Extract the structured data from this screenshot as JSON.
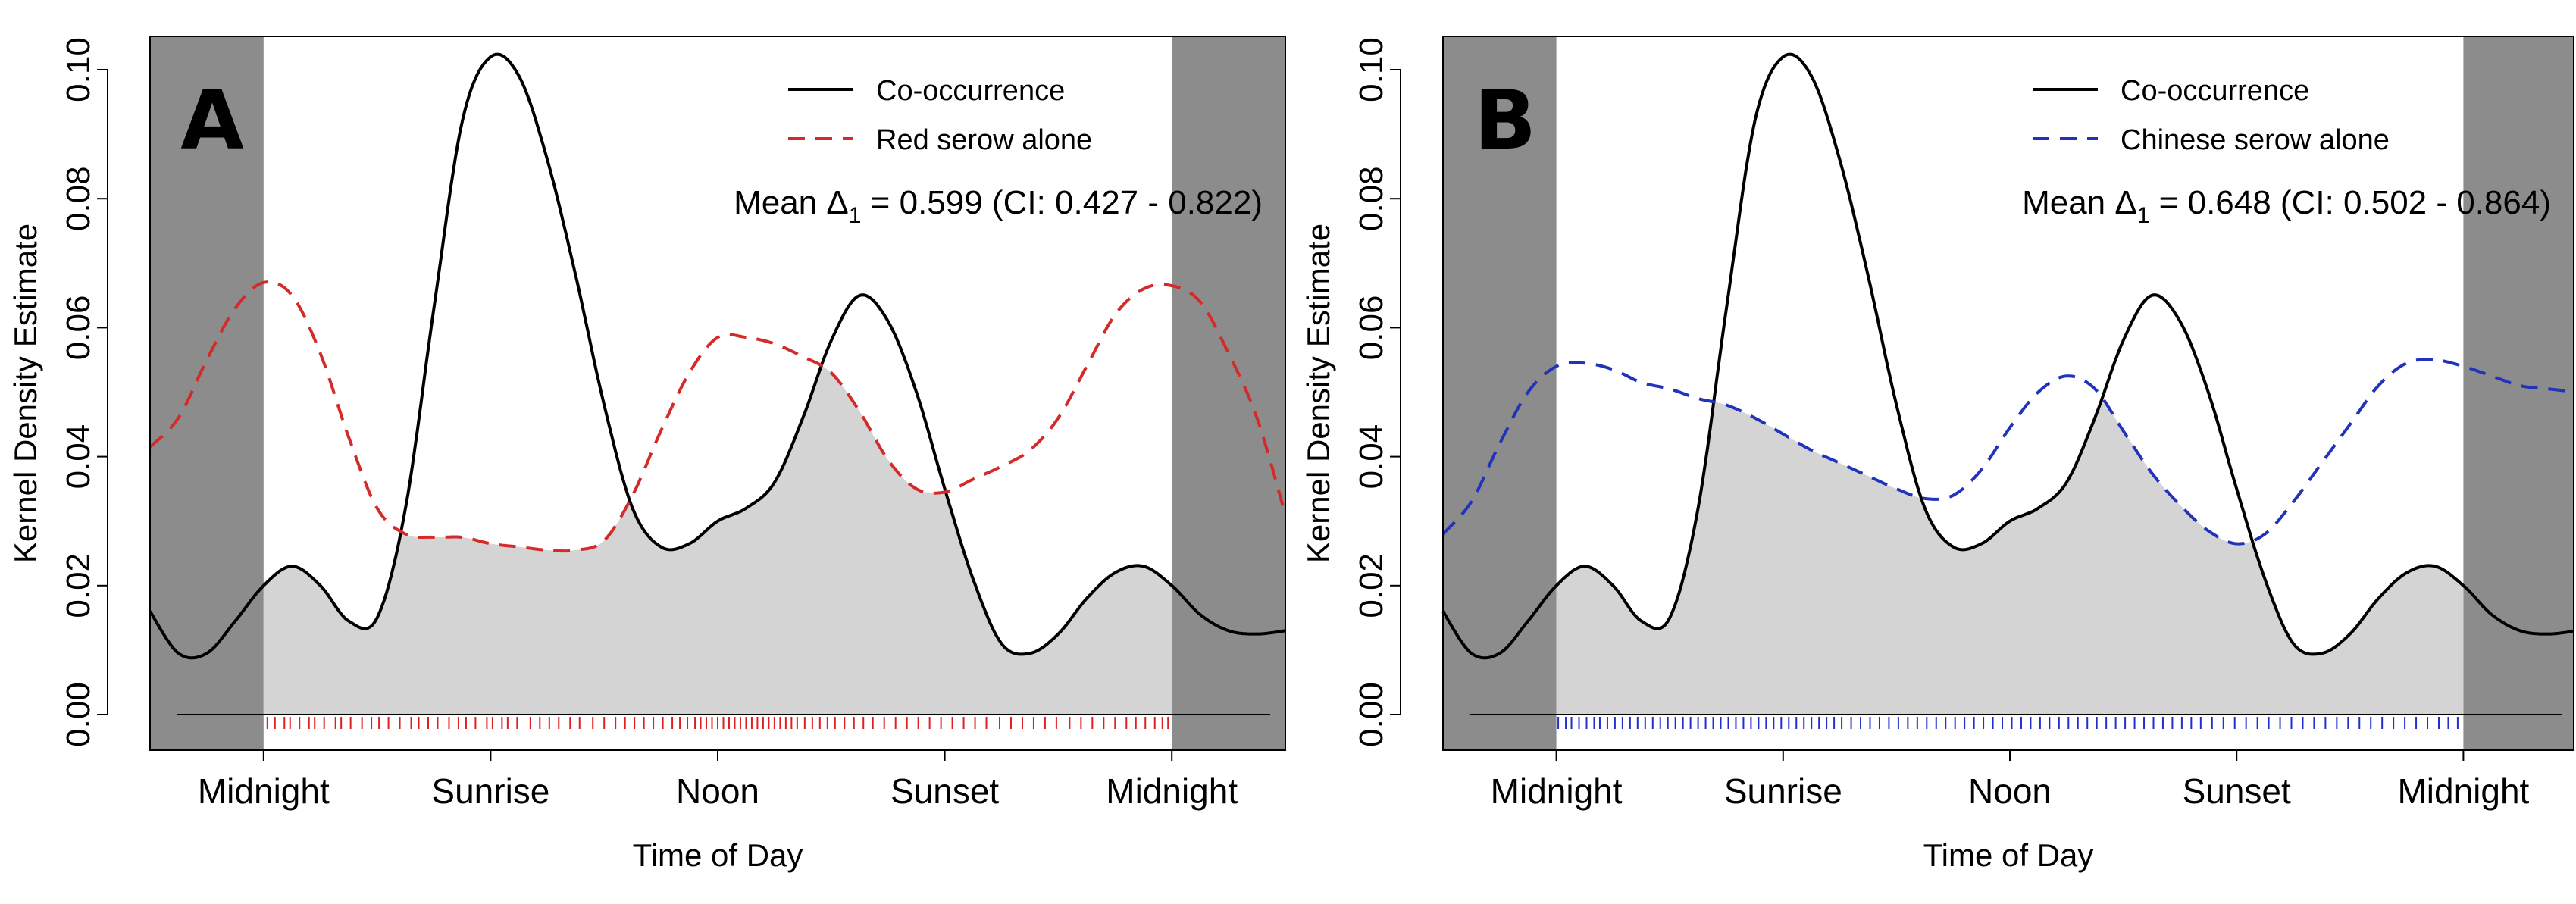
{
  "chart_data": [
    {
      "type": "line",
      "panel_label": "A",
      "xlabel": "Time of Day",
      "ylabel": "Kernel Density Estimate",
      "ylim": [
        0.0,
        0.1
      ],
      "y_ticks": [
        "0.00",
        "0.02",
        "0.04",
        "0.06",
        "0.08",
        "0.10"
      ],
      "x_tick_labels": [
        "Midnight",
        "Sunrise",
        "Noon",
        "Sunset",
        "Midnight"
      ],
      "x_tick_hours": [
        0,
        6,
        12,
        18,
        24
      ],
      "xlim_hours": [
        -3,
        27
      ],
      "night_shading_hours": [
        [
          -3,
          0
        ],
        [
          24,
          27
        ]
      ],
      "series": [
        {
          "name": "Co-occurrence",
          "style": "solid",
          "color": "#000000",
          "x": [
            -3,
            -2.25,
            -1.5,
            -0.75,
            0,
            0.75,
            1.5,
            2.25,
            3,
            3.75,
            4.5,
            5.25,
            6,
            6.75,
            7.5,
            8.25,
            9,
            9.75,
            10.5,
            11.25,
            12,
            12.75,
            13.5,
            14.25,
            15,
            15.75,
            16.5,
            17.25,
            18,
            18.75,
            19.5,
            20.25,
            21,
            21.75,
            22.5,
            23.25,
            24,
            24.75,
            25.5,
            26.25,
            27
          ],
          "y": [
            0.016,
            0.0095,
            0.0095,
            0.0145,
            0.02,
            0.023,
            0.02,
            0.0145,
            0.015,
            0.032,
            0.063,
            0.092,
            0.102,
            0.099,
            0.086,
            0.068,
            0.048,
            0.032,
            0.026,
            0.0265,
            0.03,
            0.032,
            0.036,
            0.046,
            0.058,
            0.065,
            0.061,
            0.05,
            0.035,
            0.021,
            0.011,
            0.0095,
            0.0125,
            0.018,
            0.022,
            0.023,
            0.02,
            0.0155,
            0.013,
            0.0125,
            0.013
          ]
        },
        {
          "name": "Red serow alone",
          "style": "dashed",
          "color": "#d42a2a",
          "x": [
            -3,
            -2.25,
            -1.5,
            -0.75,
            0,
            0.75,
            1.5,
            2.25,
            3,
            3.75,
            4.5,
            5.25,
            6,
            6.75,
            7.5,
            8.25,
            9,
            9.75,
            10.5,
            11.25,
            12,
            12.75,
            13.5,
            14.25,
            15,
            15.75,
            16.5,
            17.25,
            18,
            18.75,
            19.5,
            20.25,
            21,
            21.75,
            22.5,
            23.25,
            24,
            24.75,
            25.5,
            26.25,
            27
          ],
          "y": [
            0.0415,
            0.046,
            0.055,
            0.063,
            0.067,
            0.065,
            0.056,
            0.043,
            0.032,
            0.028,
            0.0275,
            0.0275,
            0.0265,
            0.026,
            0.0255,
            0.0255,
            0.027,
            0.034,
            0.044,
            0.053,
            0.0585,
            0.0585,
            0.0575,
            0.0555,
            0.053,
            0.047,
            0.0395,
            0.035,
            0.0345,
            0.0365,
            0.0385,
            0.041,
            0.046,
            0.054,
            0.062,
            0.066,
            0.0665,
            0.064,
            0.056,
            0.046,
            0.031
          ]
        }
      ],
      "legend": [
        "Co-occurrence",
        "Red serow alone"
      ],
      "legend_position": "top-right",
      "annotation": {
        "prefix": "Mean Δ",
        "subscript": "1",
        "suffix": " = 0.599 (CI: 0.427 - 0.822)"
      },
      "rug_color": "#e02020",
      "rug_hours": [
        0.1,
        0.3,
        0.55,
        0.7,
        0.95,
        1.2,
        1.35,
        1.6,
        1.9,
        2.05,
        2.3,
        2.6,
        2.85,
        3.05,
        3.3,
        3.6,
        3.9,
        4.1,
        4.35,
        4.6,
        4.9,
        5.15,
        5.35,
        5.6,
        5.9,
        6.05,
        6.3,
        6.45,
        6.7,
        7.05,
        7.3,
        7.55,
        7.8,
        8.1,
        8.35,
        8.7,
        9.0,
        9.3,
        9.55,
        9.8,
        10.05,
        10.3,
        10.55,
        10.8,
        11.0,
        11.2,
        11.4,
        11.55,
        11.7,
        11.85,
        12.0,
        12.15,
        12.3,
        12.45,
        12.6,
        12.75,
        12.9,
        13.05,
        13.2,
        13.35,
        13.5,
        13.65,
        13.8,
        13.95,
        14.1,
        14.3,
        14.5,
        14.7,
        14.9,
        15.1,
        15.35,
        15.6,
        15.85,
        16.1,
        16.4,
        16.7,
        17.0,
        17.3,
        17.6,
        17.9,
        18.2,
        18.5,
        18.8,
        19.1,
        19.45,
        19.75,
        20.05,
        20.35,
        20.65,
        20.95,
        21.3,
        21.6,
        21.9,
        22.2,
        22.5,
        22.8,
        23.05,
        23.3,
        23.55,
        23.75,
        23.9
      ]
    },
    {
      "type": "line",
      "panel_label": "B",
      "xlabel": "Time of Day",
      "ylabel": "Kernel Density Estimate",
      "ylim": [
        0.0,
        0.1
      ],
      "y_ticks": [
        "0.00",
        "0.02",
        "0.04",
        "0.06",
        "0.08",
        "0.10"
      ],
      "x_tick_labels": [
        "Midnight",
        "Sunrise",
        "Noon",
        "Sunset",
        "Midnight"
      ],
      "x_tick_hours": [
        0,
        6,
        12,
        18,
        24
      ],
      "xlim_hours": [
        -3,
        27
      ],
      "night_shading_hours": [
        [
          -3,
          0
        ],
        [
          24,
          27
        ]
      ],
      "series": [
        {
          "name": "Co-occurrence",
          "style": "solid",
          "color": "#000000",
          "x": [
            -3,
            -2.25,
            -1.5,
            -0.75,
            0,
            0.75,
            1.5,
            2.25,
            3,
            3.75,
            4.5,
            5.25,
            6,
            6.75,
            7.5,
            8.25,
            9,
            9.75,
            10.5,
            11.25,
            12,
            12.75,
            13.5,
            14.25,
            15,
            15.75,
            16.5,
            17.25,
            18,
            18.75,
            19.5,
            20.25,
            21,
            21.75,
            22.5,
            23.25,
            24,
            24.75,
            25.5,
            26.25,
            27
          ],
          "y": [
            0.016,
            0.0095,
            0.0095,
            0.0145,
            0.02,
            0.023,
            0.02,
            0.0145,
            0.015,
            0.032,
            0.063,
            0.092,
            0.102,
            0.099,
            0.086,
            0.068,
            0.048,
            0.032,
            0.026,
            0.0265,
            0.03,
            0.032,
            0.036,
            0.046,
            0.058,
            0.065,
            0.061,
            0.05,
            0.035,
            0.021,
            0.011,
            0.0095,
            0.0125,
            0.018,
            0.022,
            0.023,
            0.02,
            0.0155,
            0.013,
            0.0125,
            0.013
          ]
        },
        {
          "name": "Chinese serow alone",
          "style": "dashed",
          "color": "#2233bb",
          "x": [
            -3,
            -2.25,
            -1.5,
            -0.75,
            0,
            0.75,
            1.5,
            2.25,
            3,
            3.75,
            4.5,
            5.25,
            6,
            6.75,
            7.5,
            8.25,
            9,
            9.75,
            10.5,
            11.25,
            12,
            12.75,
            13.5,
            14.25,
            15,
            15.75,
            16.5,
            17.25,
            18,
            18.75,
            19.5,
            20.25,
            21,
            21.75,
            22.5,
            23.25,
            24,
            24.75,
            25.5,
            26.25,
            27
          ],
          "y": [
            0.028,
            0.033,
            0.042,
            0.05,
            0.054,
            0.0545,
            0.0535,
            0.0515,
            0.0505,
            0.049,
            0.048,
            0.046,
            0.0435,
            0.041,
            0.039,
            0.037,
            0.035,
            0.0335,
            0.034,
            0.038,
            0.0445,
            0.05,
            0.0525,
            0.0505,
            0.044,
            0.0375,
            0.0325,
            0.0285,
            0.0265,
            0.028,
            0.033,
            0.039,
            0.045,
            0.051,
            0.0545,
            0.055,
            0.054,
            0.0525,
            0.051,
            0.0505,
            0.05
          ]
        }
      ],
      "legend": [
        "Co-occurrence",
        "Chinese serow alone"
      ],
      "legend_position": "top-right",
      "annotation": {
        "prefix": "Mean Δ",
        "subscript": "1",
        "suffix": " = 0.648 (CI: 0.502 - 0.864)"
      },
      "rug_color": "#2030d0",
      "rug_hours": [
        0.05,
        0.25,
        0.4,
        0.6,
        0.8,
        1.0,
        1.15,
        1.35,
        1.55,
        1.75,
        1.95,
        2.15,
        2.35,
        2.55,
        2.75,
        2.95,
        3.15,
        3.35,
        3.55,
        3.75,
        3.95,
        4.15,
        4.35,
        4.55,
        4.75,
        4.95,
        5.15,
        5.35,
        5.55,
        5.75,
        5.95,
        6.15,
        6.35,
        6.55,
        6.75,
        6.95,
        7.15,
        7.35,
        7.55,
        7.8,
        8.05,
        8.3,
        8.55,
        8.8,
        9.05,
        9.3,
        9.55,
        9.8,
        10.05,
        10.3,
        10.55,
        10.8,
        11.05,
        11.3,
        11.55,
        11.8,
        12.05,
        12.3,
        12.55,
        12.8,
        13.05,
        13.3,
        13.55,
        13.8,
        14.05,
        14.3,
        14.55,
        14.8,
        15.05,
        15.3,
        15.55,
        15.8,
        16.05,
        16.3,
        16.55,
        16.8,
        17.05,
        17.35,
        17.65,
        17.95,
        18.25,
        18.55,
        18.85,
        19.15,
        19.45,
        19.75,
        20.05,
        20.35,
        20.65,
        20.95,
        21.25,
        21.55,
        21.85,
        22.15,
        22.45,
        22.75,
        23.05,
        23.35,
        23.6,
        23.85
      ]
    }
  ]
}
